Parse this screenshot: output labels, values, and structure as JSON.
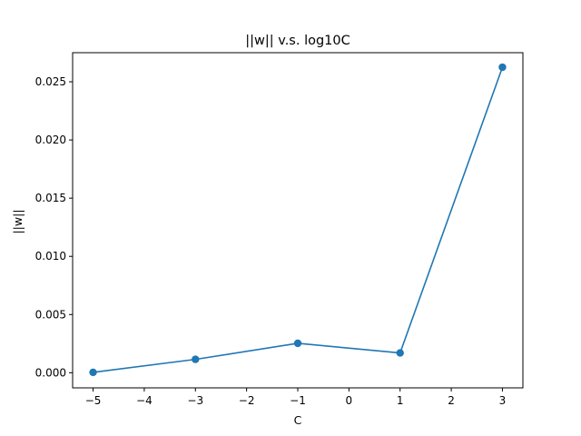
{
  "chart_data": {
    "type": "line",
    "title": "||w|| v.s. log10C",
    "xlabel": "C",
    "ylabel": "||w||",
    "x": [
      -5,
      -3,
      -1,
      1,
      3
    ],
    "series": [
      {
        "values": [
          3e-05,
          0.00115,
          0.00253,
          0.0017,
          0.02625
        ],
        "color": "#1f77b4",
        "marker": "circle"
      }
    ],
    "xlim": [
      -5.4,
      3.4
    ],
    "ylim": [
      -0.0013,
      0.0275
    ],
    "xticks": [
      -5,
      -4,
      -3,
      -2,
      -1,
      0,
      1,
      2,
      3
    ],
    "xtick_labels": [
      "−5",
      "−4",
      "−3",
      "−2",
      "−1",
      "0",
      "1",
      "2",
      "3"
    ],
    "yticks": [
      0.0,
      0.005,
      0.01,
      0.015,
      0.02,
      0.025
    ],
    "ytick_labels": [
      "0.000",
      "0.005",
      "0.010",
      "0.015",
      "0.020",
      "0.025"
    ],
    "grid": false,
    "legend": false
  }
}
